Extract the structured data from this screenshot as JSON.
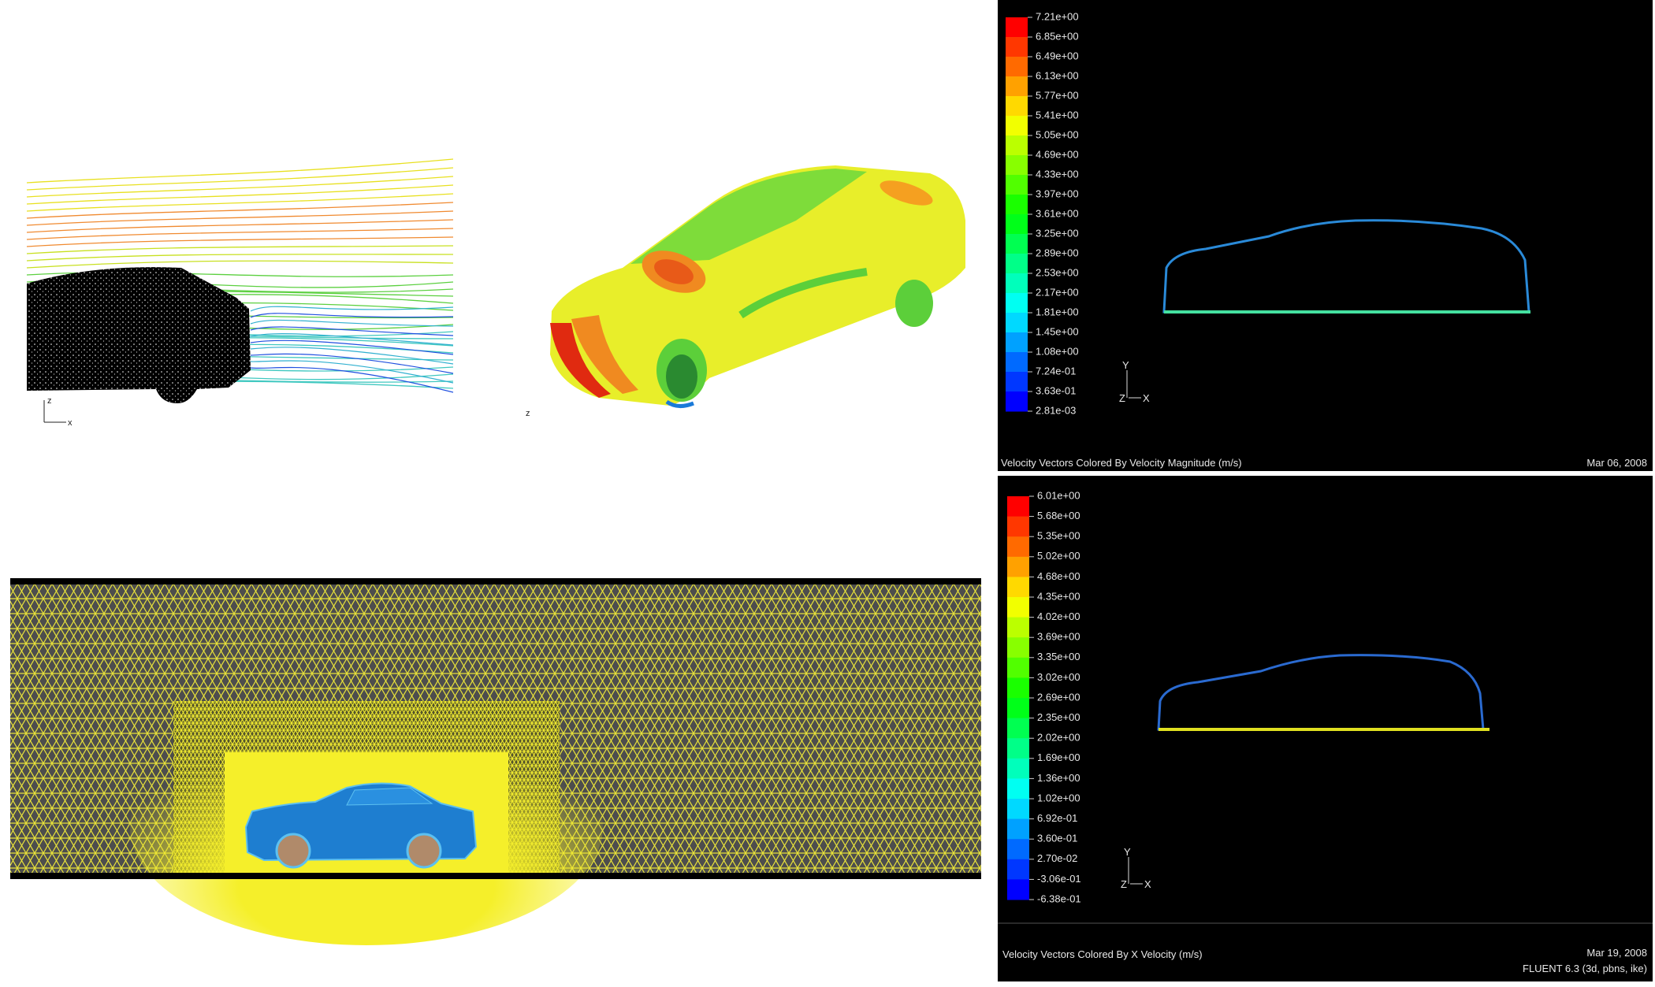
{
  "panels": {
    "streamlines": {
      "axis_labels": {
        "up": "z",
        "right": "x"
      }
    },
    "surface": {
      "axis_labels": {
        "up": "z"
      }
    },
    "velocity_magnitude": {
      "legend": [
        "7.21e+00",
        "6.85e+00",
        "6.49e+00",
        "6.13e+00",
        "5.77e+00",
        "5.41e+00",
        "5.05e+00",
        "4.69e+00",
        "4.33e+00",
        "3.97e+00",
        "3.61e+00",
        "3.25e+00",
        "2.89e+00",
        "2.53e+00",
        "2.17e+00",
        "1.81e+00",
        "1.45e+00",
        "1.08e+00",
        "7.24e-01",
        "3.63e-01",
        "2.81e-03"
      ],
      "axis_labels": {
        "up": "Y",
        "left": "Z",
        "right": "X"
      },
      "caption": "Velocity Vectors Colored By Velocity Magnitude (m/s)",
      "date": "Mar 06, 2008"
    },
    "x_velocity": {
      "legend": [
        "6.01e+00",
        "5.68e+00",
        "5.35e+00",
        "5.02e+00",
        "4.68e+00",
        "4.35e+00",
        "4.02e+00",
        "3.69e+00",
        "3.35e+00",
        "3.02e+00",
        "2.69e+00",
        "2.35e+00",
        "2.02e+00",
        "1.69e+00",
        "1.36e+00",
        "1.02e+00",
        "6.92e-01",
        "3.60e-01",
        "2.70e-02",
        "-3.06e-01",
        "-6.38e-01"
      ],
      "axis_labels": {
        "up": "Y",
        "left": "Z",
        "right": "X"
      },
      "caption": "Velocity Vectors Colored By X Velocity (m/s)",
      "date": "Mar 19, 2008",
      "solver": "FLUENT 6.3 (3d, pbns, ike)"
    }
  }
}
